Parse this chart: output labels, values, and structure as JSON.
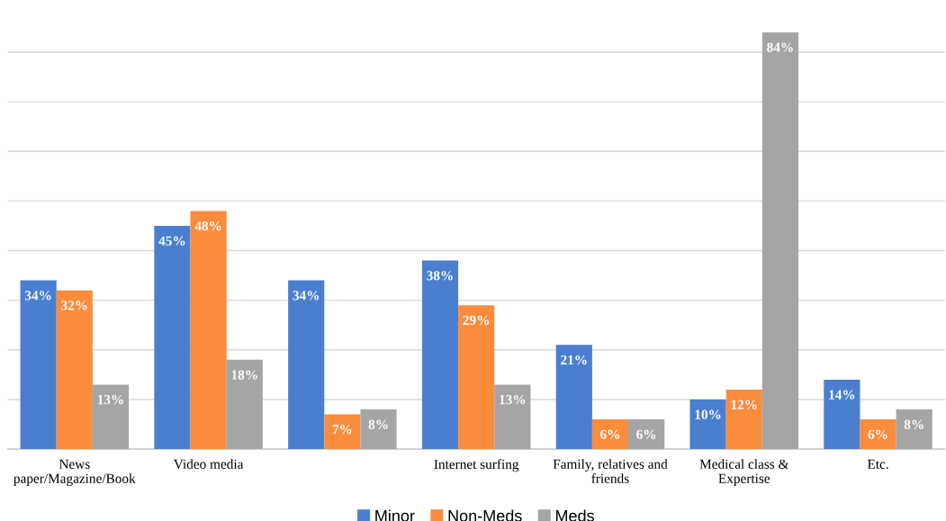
{
  "chart_data": {
    "type": "bar",
    "categories": [
      "News\npaper/Magazine/Book",
      "Video media",
      null,
      "Internet surfing",
      "Family, relatives and\nfriends",
      "Medical class &\nExpertise",
      "Etc."
    ],
    "series": [
      {
        "name": "Minor",
        "color": "#4a7fd0",
        "values": [
          34,
          45,
          34,
          38,
          21,
          10,
          14
        ],
        "value_labels": [
          "34%",
          "45%",
          "34%",
          "38%",
          "21%",
          "10%",
          "14%"
        ]
      },
      {
        "name": "Non-Meds",
        "color": "#fb8c3c",
        "values": [
          32,
          48,
          7,
          29,
          6,
          12,
          6
        ],
        "value_labels": [
          "32%",
          "48%",
          "7%",
          "29%",
          "6%",
          "12%",
          "6%"
        ]
      },
      {
        "name": "Meds",
        "color": "#a5a5a5",
        "values": [
          13,
          18,
          8,
          13,
          6,
          84,
          8
        ],
        "value_labels": [
          "13%",
          "18%",
          "8%",
          "13%",
          "6%",
          "84%",
          "8%"
        ]
      }
    ],
    "grid": "y",
    "legend": "bottom",
    "tick_labels": "x"
  }
}
